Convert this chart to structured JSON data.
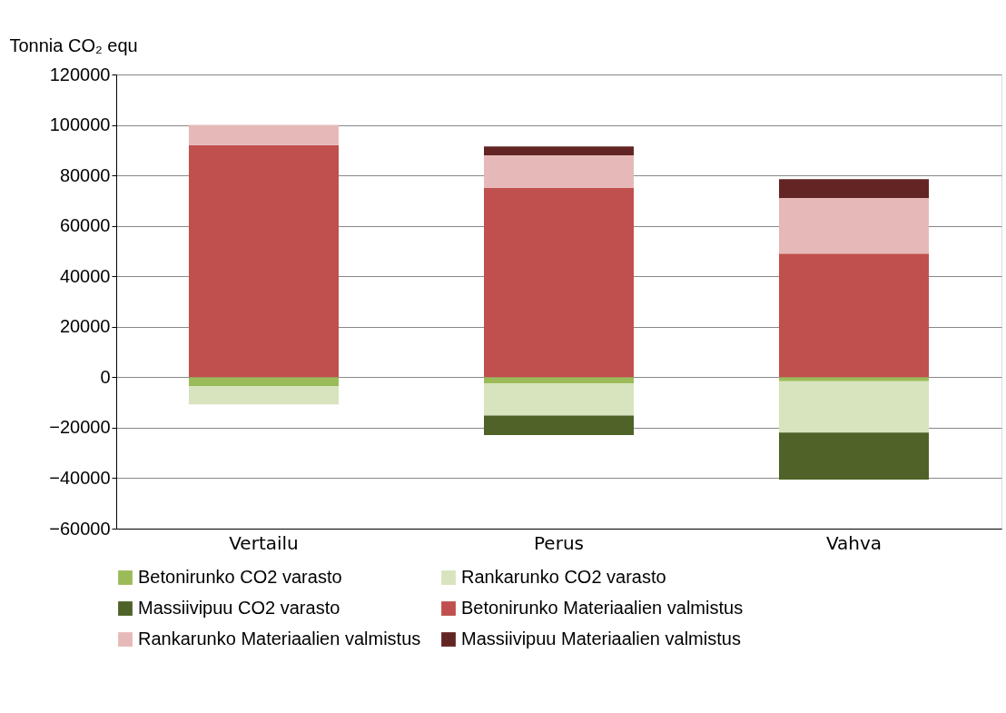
{
  "chart_data": {
    "type": "bar",
    "stacked": true,
    "ylabel": "Tonnia CO₂ equ",
    "categories": [
      "Vertailu",
      "Perus",
      "Vahva"
    ],
    "series": [
      {
        "name": "Betonirunko CO2 varasto",
        "color": "#9bbb59",
        "values": [
          -3500,
          -2500,
          -1600
        ]
      },
      {
        "name": "Rankarunko CO2 varasto",
        "color": "#d7e4bd",
        "values": [
          -7300,
          -12700,
          -20300
        ]
      },
      {
        "name": "Massiivipuu CO2 varasto",
        "color": "#4f6228",
        "values": [
          null,
          -7700,
          -18700
        ]
      },
      {
        "name": "Betonirunko Materiaalien valmistus",
        "color": "#c0504d",
        "values": [
          92000,
          75000,
          49000
        ]
      },
      {
        "name": "Rankarunko Materiaalien valmistus",
        "color": "#e6b9b8",
        "values": [
          8000,
          13000,
          22000
        ]
      },
      {
        "name": "Massiivipuu Materiaalien valmistus",
        "color": "#632523",
        "values": [
          null,
          3500,
          7500
        ]
      }
    ],
    "ylim": [
      -60000,
      120000
    ],
    "yticks": [
      -60000,
      -40000,
      -20000,
      0,
      20000,
      40000,
      60000,
      80000,
      100000,
      120000
    ],
    "grid": "y",
    "legend": "bottom"
  }
}
